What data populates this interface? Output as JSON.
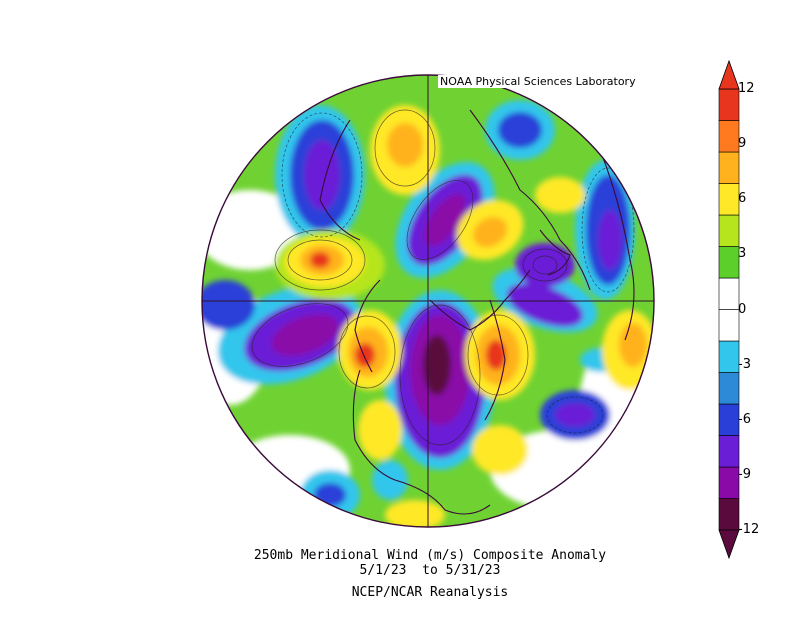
{
  "credit": "NOAA Physical Sciences Laboratory",
  "title_line1": "250mb Meridional Wind (m/s) Composite Anomaly",
  "title_line2": "5/1/23  to 5/31/23",
  "title_line3": "NCEP/NCAR Reanalysis",
  "colorbar": {
    "labels": [
      "12",
      "9",
      "6",
      "3",
      "0",
      "-3",
      "-6",
      "-9",
      "-12"
    ],
    "colors": [
      "#5a0a3c",
      "#8a0aa8",
      "#6a1fd6",
      "#2a3fd8",
      "#2d8ad6",
      "#33c6ec",
      "#ffffff",
      "#ffffff",
      "#5ccf2a",
      "#b6e51e",
      "#ffe828",
      "#ffb21e",
      "#ff7a1e",
      "#e8351e"
    ]
  },
  "map": {
    "projection": "north-polar-stereographic",
    "variable": "250mb meridional wind anomaly",
    "units": "m/s"
  }
}
